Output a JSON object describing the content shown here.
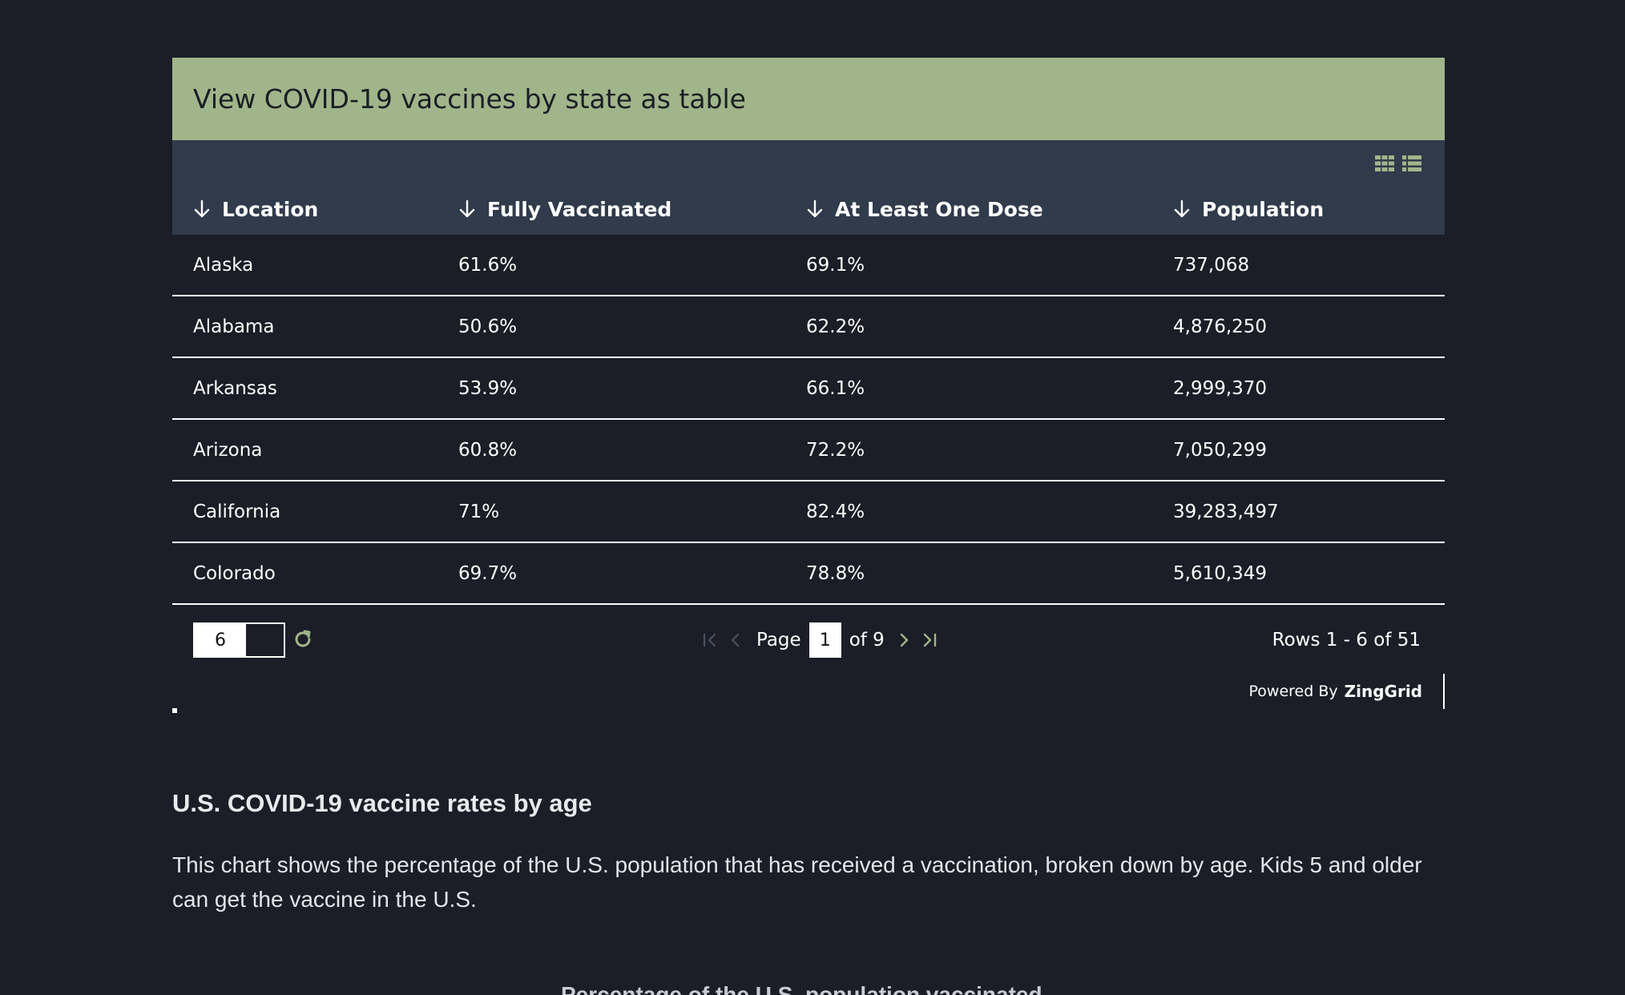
{
  "grid": {
    "caption": "View COVID-19 vaccines by state as table",
    "layout_icons": [
      "grid-layout-icon",
      "row-layout-icon"
    ],
    "columns": [
      "Location",
      "Fully Vaccinated",
      "At Least One Dose",
      "Population"
    ],
    "rows": [
      [
        "Alaska",
        "61.6%",
        "69.1%",
        "737,068"
      ],
      [
        "Alabama",
        "50.6%",
        "62.2%",
        "4,876,250"
      ],
      [
        "Arkansas",
        "53.9%",
        "66.1%",
        "2,999,370"
      ],
      [
        "Arizona",
        "60.8%",
        "72.2%",
        "7,050,299"
      ],
      [
        "California",
        "71%",
        "82.4%",
        "39,283,497"
      ],
      [
        "Colorado",
        "69.7%",
        "78.8%",
        "5,610,349"
      ]
    ],
    "pager": {
      "page_size": "6",
      "page_label": "Page",
      "current_page": "1",
      "of_label": "of 9",
      "rows_info": "Rows 1 - 6 of 51"
    },
    "powered_by": "Powered By",
    "brand": "ZingGrid"
  },
  "article": {
    "title": "U.S. COVID-19 vaccine rates by age",
    "description": "This chart shows the percentage of the U.S. population that has received a vaccination, broken down by age. Kids 5 and older can get the vaccine in the U.S.",
    "chart_title_partial": "Percentage of the U.S. population vaccinated"
  },
  "colors": {
    "page_bg": "#1b1e27",
    "caption_bg": "#a1b58a",
    "header_bg": "#303b4b",
    "accent": "#a1b58a"
  }
}
